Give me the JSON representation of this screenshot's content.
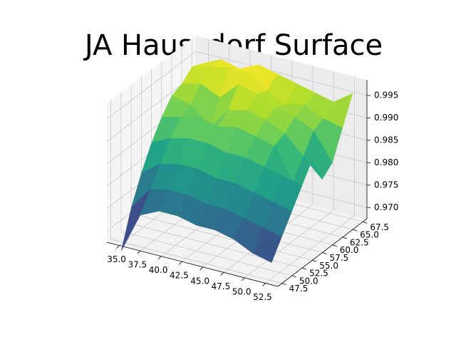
{
  "chart_data": {
    "type": "surface",
    "title": "JA Haussdorf Surface",
    "x": [
      35,
      37.25,
      39.5,
      41.75,
      44,
      46.25,
      48.5,
      50.75,
      53
    ],
    "y": [
      47,
      49.5,
      52,
      54.5,
      57,
      59.5,
      62,
      64.5,
      67
    ],
    "z": [
      [
        0.966,
        0.975,
        0.977,
        0.977,
        0.976,
        0.976,
        0.975,
        0.973,
        0.972
      ],
      [
        0.974,
        0.979,
        0.98,
        0.98,
        0.979,
        0.979,
        0.978,
        0.977,
        0.976
      ],
      [
        0.98,
        0.983,
        0.984,
        0.984,
        0.983,
        0.983,
        0.982,
        0.981,
        0.98
      ],
      [
        0.985,
        0.987,
        0.988,
        0.988,
        0.987,
        0.987,
        0.986,
        0.985,
        0.984
      ],
      [
        0.989,
        0.99,
        0.991,
        0.99,
        0.991,
        0.99,
        0.989,
        0.982,
        0.988
      ],
      [
        0.992,
        0.991,
        0.987,
        0.992,
        0.993,
        0.992,
        0.99,
        0.986,
        0.982
      ],
      [
        0.993,
        0.994,
        0.992,
        0.996,
        0.995,
        0.993,
        0.992,
        0.99,
        0.984
      ],
      [
        0.995,
        0.996,
        0.997,
        0.997,
        0.994,
        0.992,
        0.993,
        0.991,
        0.99
      ],
      [
        0.994,
        0.996,
        0.995,
        0.997,
        0.996,
        0.995,
        0.994,
        0.993,
        0.996
      ]
    ],
    "xlim": [
      33.5,
      54
    ],
    "ylim": [
      46.5,
      68.5
    ],
    "zlim": [
      0.9675,
      0.9985
    ],
    "xticks": [
      {
        "value": 35,
        "label": "35.0"
      },
      {
        "value": 37.5,
        "label": "37.5"
      },
      {
        "value": 40,
        "label": "40.0"
      },
      {
        "value": 42.5,
        "label": "42.5"
      },
      {
        "value": 45,
        "label": "45.0"
      },
      {
        "value": 47.5,
        "label": "47.5"
      },
      {
        "value": 50,
        "label": "50.0"
      },
      {
        "value": 52.5,
        "label": "52.5"
      }
    ],
    "yticks": [
      {
        "value": 47.5,
        "label": "47.5"
      },
      {
        "value": 50,
        "label": "50.0"
      },
      {
        "value": 52.5,
        "label": "52.5"
      },
      {
        "value": 55,
        "label": "55.0"
      },
      {
        "value": 57.5,
        "label": "57.5"
      },
      {
        "value": 60,
        "label": "60.0"
      },
      {
        "value": 62.5,
        "label": "62.5"
      },
      {
        "value": 65,
        "label": "65.0"
      },
      {
        "value": 67.5,
        "label": "67.5"
      }
    ],
    "zticks": [
      {
        "value": 0.97,
        "label": "0.970"
      },
      {
        "value": 0.975,
        "label": "0.975"
      },
      {
        "value": 0.98,
        "label": "0.980"
      },
      {
        "value": 0.985,
        "label": "0.985"
      },
      {
        "value": 0.99,
        "label": "0.990"
      },
      {
        "value": 0.995,
        "label": "0.995"
      }
    ],
    "colormap": "viridis",
    "grid": true
  }
}
